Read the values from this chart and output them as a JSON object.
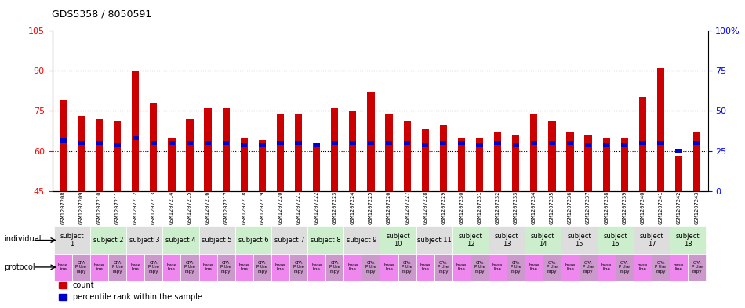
{
  "title": "GDS5358 / 8050591",
  "samples": [
    "GSM1207208",
    "GSM1207209",
    "GSM1207210",
    "GSM1207211",
    "GSM1207212",
    "GSM1207213",
    "GSM1207214",
    "GSM1207215",
    "GSM1207216",
    "GSM1207217",
    "GSM1207218",
    "GSM1207219",
    "GSM1207220",
    "GSM1207221",
    "GSM1207222",
    "GSM1207223",
    "GSM1207224",
    "GSM1207225",
    "GSM1207226",
    "GSM1207227",
    "GSM1207228",
    "GSM1207229",
    "GSM1207230",
    "GSM1207231",
    "GSM1207232",
    "GSM1207233",
    "GSM1207234",
    "GSM1207235",
    "GSM1207236",
    "GSM1207237",
    "GSM1207238",
    "GSM1207239",
    "GSM1207240",
    "GSM1207241",
    "GSM1207242",
    "GSM1207243"
  ],
  "red_values": [
    79,
    73,
    72,
    71,
    90,
    78,
    65,
    72,
    76,
    76,
    65,
    64,
    74,
    74,
    63,
    76,
    75,
    82,
    74,
    71,
    68,
    70,
    65,
    65,
    67,
    66,
    74,
    71,
    67,
    66,
    65,
    65,
    80,
    91,
    58,
    67
  ],
  "blue_values": [
    64,
    63,
    63,
    62,
    65,
    63,
    63,
    63,
    63,
    63,
    62,
    62,
    63,
    63,
    62,
    63,
    63,
    63,
    63,
    63,
    62,
    63,
    63,
    62,
    63,
    62,
    63,
    63,
    63,
    62,
    62,
    62,
    63,
    63,
    60,
    63
  ],
  "subjects": [
    {
      "label": "subject\n1",
      "start": 0,
      "end": 2,
      "color": "#dddddd"
    },
    {
      "label": "subject 2",
      "start": 2,
      "end": 4,
      "color": "#cceecc"
    },
    {
      "label": "subject 3",
      "start": 4,
      "end": 6,
      "color": "#dddddd"
    },
    {
      "label": "subject 4",
      "start": 6,
      "end": 8,
      "color": "#cceecc"
    },
    {
      "label": "subject 5",
      "start": 8,
      "end": 10,
      "color": "#dddddd"
    },
    {
      "label": "subject 6",
      "start": 10,
      "end": 12,
      "color": "#cceecc"
    },
    {
      "label": "subject 7",
      "start": 12,
      "end": 14,
      "color": "#dddddd"
    },
    {
      "label": "subject 8",
      "start": 14,
      "end": 16,
      "color": "#cceecc"
    },
    {
      "label": "subject 9",
      "start": 16,
      "end": 18,
      "color": "#dddddd"
    },
    {
      "label": "subject\n10",
      "start": 18,
      "end": 20,
      "color": "#cceecc"
    },
    {
      "label": "subject 11",
      "start": 20,
      "end": 22,
      "color": "#dddddd"
    },
    {
      "label": "subject\n12",
      "start": 22,
      "end": 24,
      "color": "#cceecc"
    },
    {
      "label": "subject\n13",
      "start": 24,
      "end": 26,
      "color": "#dddddd"
    },
    {
      "label": "subject\n14",
      "start": 26,
      "end": 28,
      "color": "#cceecc"
    },
    {
      "label": "subject\n15",
      "start": 28,
      "end": 30,
      "color": "#dddddd"
    },
    {
      "label": "subject\n16",
      "start": 30,
      "end": 32,
      "color": "#cceecc"
    },
    {
      "label": "subject\n17",
      "start": 32,
      "end": 34,
      "color": "#dddddd"
    },
    {
      "label": "subject\n18",
      "start": 34,
      "end": 36,
      "color": "#cceecc"
    }
  ],
  "ylim_left": [
    45,
    105
  ],
  "ylim_right": [
    0,
    100
  ],
  "yticks_left": [
    45,
    60,
    75,
    90,
    105
  ],
  "yticks_right": [
    0,
    25,
    50,
    75,
    100
  ],
  "ytick_labels_right": [
    "0",
    "25",
    "50",
    "75",
    "100%"
  ],
  "bar_width": 0.4,
  "red_color": "#cc0000",
  "blue_color": "#0000cc",
  "grid_color": "#000000",
  "protocol_colors": [
    "#ee88ee",
    "#ee88ee"
  ],
  "legend_red": "count",
  "legend_blue": "percentile rank within the sample"
}
